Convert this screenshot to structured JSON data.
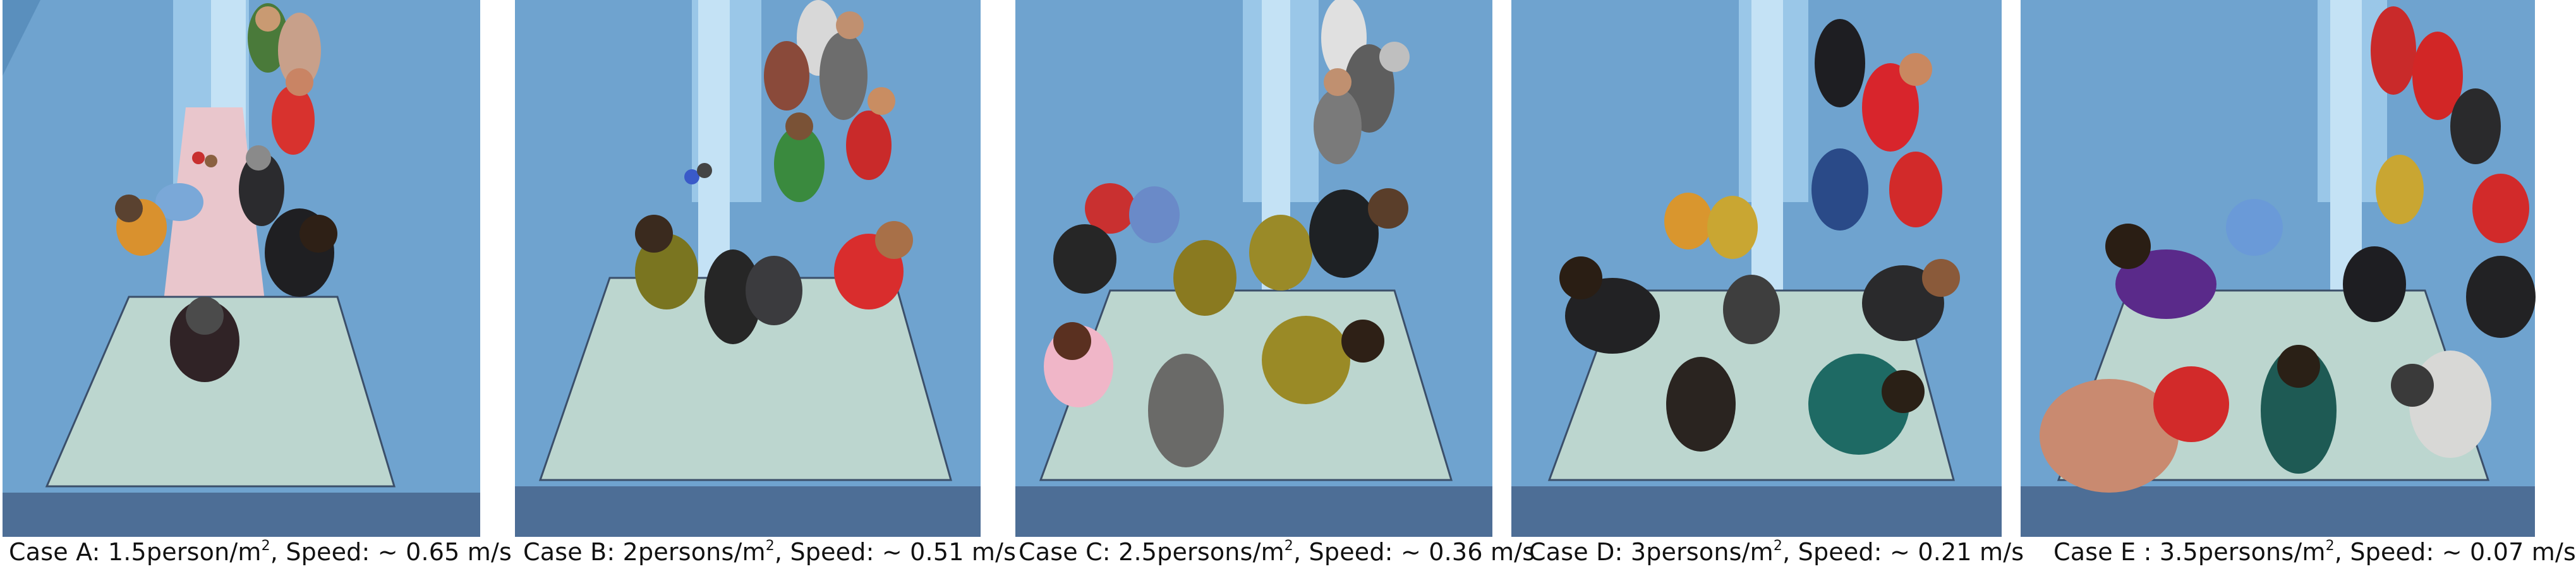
{
  "figure": {
    "cases": [
      {
        "prefix": "Case A: 1.5person/m",
        "sup": "2",
        "suffix": ", Speed: ~ 0.65 m/s"
      },
      {
        "prefix": "Case B: 2persons/m",
        "sup": "2",
        "suffix": ", Speed: ~ 0.51 m/s"
      },
      {
        "prefix": "Case C: 2.5persons/m",
        "sup": "2",
        "suffix": ", Speed: ~ 0.36 m/s"
      },
      {
        "prefix": "Case D: 3persons/m",
        "sup": "2",
        "suffix": ", Speed: ~ 0.21 m/s"
      },
      {
        "prefix": "Case E : 3.5persons/m",
        "sup": "2",
        "suffix": ", Speed: ~ 0.07 m/s"
      }
    ]
  },
  "colors": {
    "wall": "#6fa3cf",
    "floor": "#bcd6cf",
    "landing": "#4d6e96",
    "pink_floor": "#e9c6cc"
  }
}
